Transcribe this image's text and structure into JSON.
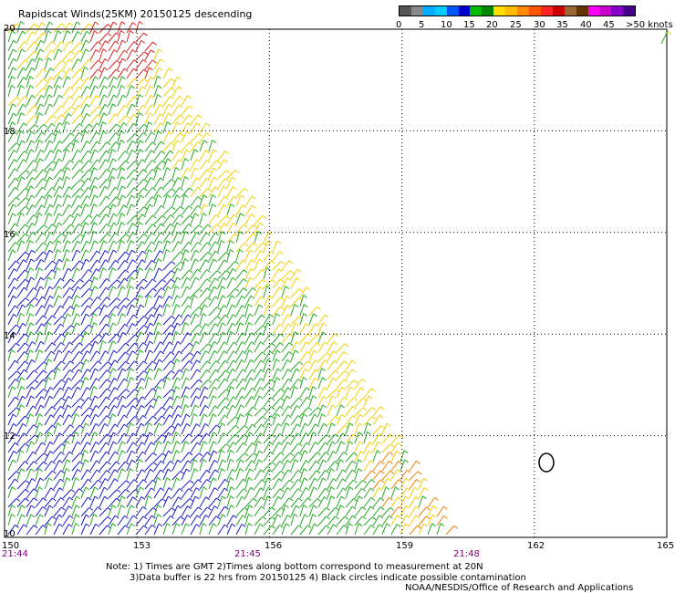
{
  "title": "Rapidscat Winds(25KM) 20150125 descending",
  "legend": {
    "colors": [
      "#555555",
      "#888888",
      "#00aaff",
      "#00ccff",
      "#0055ff",
      "#0000cc",
      "#00bb00",
      "#008800",
      "#ffdd00",
      "#ffbb00",
      "#ff8800",
      "#ff5500",
      "#ff2222",
      "#cc0000",
      "#996633",
      "#663300",
      "#ff00ff",
      "#cc00cc",
      "#8800cc",
      "#440088"
    ],
    "labels": [
      "0",
      "5",
      "10",
      "15",
      "20",
      "25",
      "30",
      "35",
      "40",
      "45",
      ">50 knots"
    ]
  },
  "map": {
    "lon_ticks": [
      "150",
      "153",
      "156",
      "159",
      "162",
      "165"
    ],
    "lat_ticks": [
      "20",
      "18",
      "16",
      "14",
      "12",
      "10"
    ],
    "times": [
      "21:44",
      "21:45",
      "21:48"
    ]
  },
  "notes": [
    "Note: 1) Times are GMT 2)Times along bottom correspond to measurement at 20N",
    "3)Data buffer is 22 hrs from 20150125 4) Black circles indicate possible contamination",
    "NOAA/NESDIS/Office of Research and Applications"
  ],
  "wind_colors": {
    "blue": "#1a1acc",
    "lightblue": "#33aaee",
    "green": "#22aa22",
    "yellow": "#f0d000",
    "orange": "#f08000",
    "red": "#dd2222"
  }
}
